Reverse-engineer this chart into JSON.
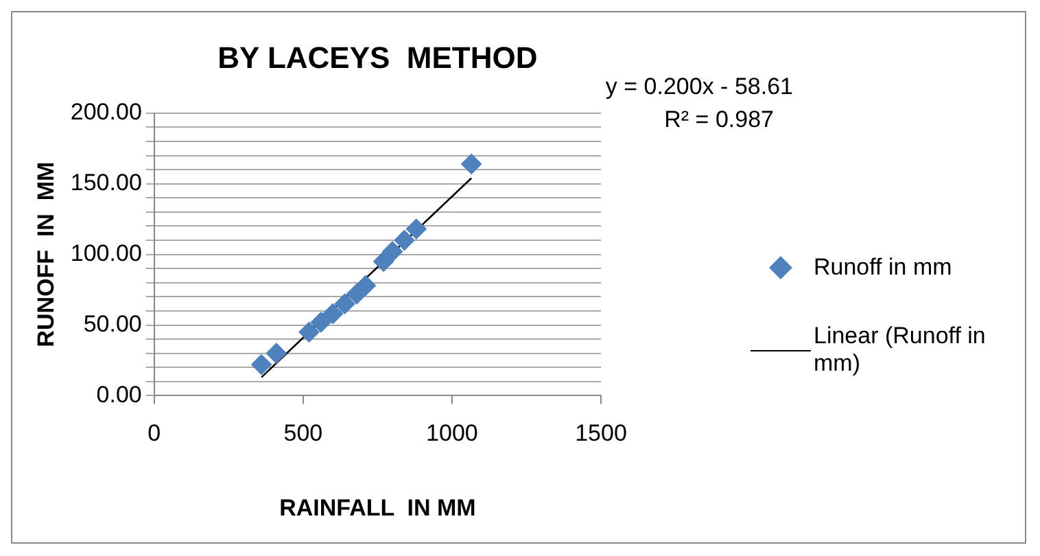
{
  "chart_data": {
    "type": "scatter",
    "title": "BY LACEYS  METHOD",
    "xlabel": "RAINFALL  IN MM",
    "ylabel": "RUNOFF  IN  MM",
    "series": [
      {
        "name": "Runoff in mm",
        "color": "#4f81bd",
        "marker": "diamond",
        "x": [
          360,
          410,
          520,
          560,
          600,
          640,
          680,
          710,
          770,
          800,
          840,
          880,
          1065
        ],
        "values": [
          22,
          30,
          45,
          52,
          58,
          65,
          72,
          78,
          95,
          102,
          110,
          118,
          164
        ]
      },
      {
        "name": "Linear (Runoff in mm)",
        "type": "line",
        "color": "#000000",
        "marker": "none",
        "x": [
          360,
          1065
        ],
        "values": [
          13,
          154
        ]
      }
    ],
    "annotations": [
      "y = 0.200x - 58.61",
      "R² = 0.987"
    ],
    "xlim": [
      0,
      1500
    ],
    "xticks": [
      0,
      500,
      1000,
      1500
    ],
    "ylim": [
      0,
      200
    ],
    "yticks": [
      {
        "value": 0,
        "label": "0.00"
      },
      {
        "value": 10,
        "label": null
      },
      {
        "value": 20,
        "label": null
      },
      {
        "value": 30,
        "label": null
      },
      {
        "value": 40,
        "label": null
      },
      {
        "value": 50,
        "label": "50.00"
      },
      {
        "value": 60,
        "label": null
      },
      {
        "value": 70,
        "label": null
      },
      {
        "value": 80,
        "label": null
      },
      {
        "value": 90,
        "label": null
      },
      {
        "value": 100,
        "label": "100.00"
      },
      {
        "value": 110,
        "label": null
      },
      {
        "value": 120,
        "label": null
      },
      {
        "value": 130,
        "label": null
      },
      {
        "value": 140,
        "label": null
      },
      {
        "value": 150,
        "label": "150.00"
      },
      {
        "value": 160,
        "label": null
      },
      {
        "value": 170,
        "label": null
      },
      {
        "value": 180,
        "label": null
      },
      {
        "value": 190,
        "label": null
      },
      {
        "value": 200,
        "label": "200.00"
      }
    ],
    "grid": "y",
    "legend": "right"
  }
}
